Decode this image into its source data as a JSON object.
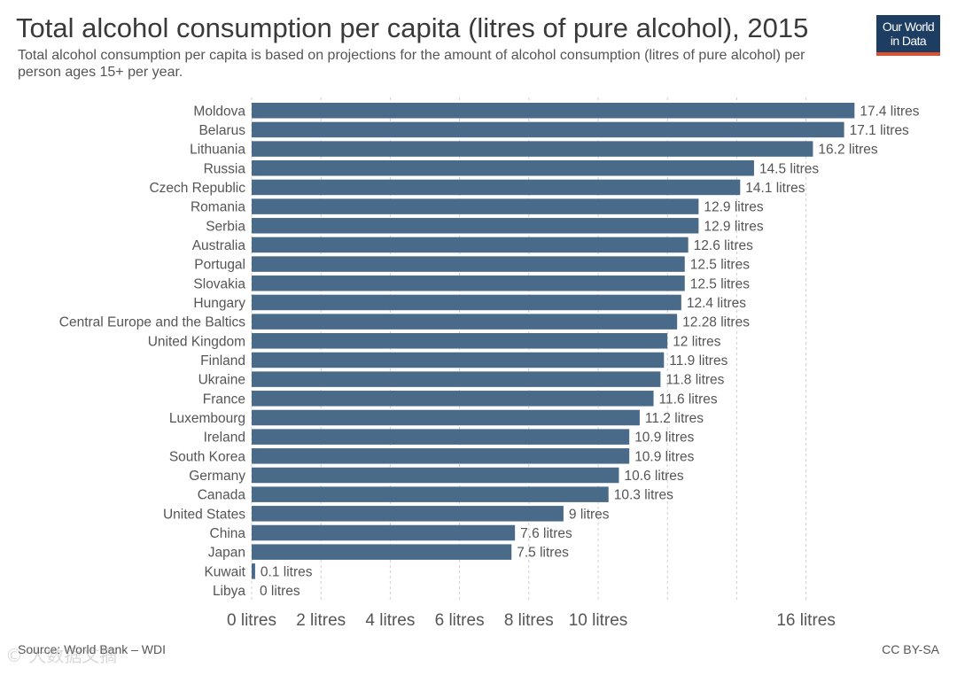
{
  "header": {
    "title": "Total alcohol consumption per capita (litres of pure alcohol), 2015",
    "subtitle": "Total alcohol consumption per capita is based on projections for the amount of alcohol consumption (litres of pure alcohol) per person ages 15+ per year.",
    "logo_line1": "Our World",
    "logo_line2": "in Data"
  },
  "footer": {
    "source": "Source: World Bank – WDI",
    "license": "CC BY-SA",
    "watermark": "© 大数据文摘"
  },
  "colors": {
    "bar": "#4a6a8a",
    "grid": "#d0d0d0",
    "label": "#555555",
    "logo_bg": "#1d3d63",
    "logo_accent": "#e0502f"
  },
  "chart_data": {
    "type": "bar",
    "orientation": "horizontal",
    "categories": [
      "Moldova",
      "Belarus",
      "Lithuania",
      "Russia",
      "Czech Republic",
      "Romania",
      "Serbia",
      "Australia",
      "Portugal",
      "Slovakia",
      "Hungary",
      "Central Europe and the Baltics",
      "United Kingdom",
      "Finland",
      "Ukraine",
      "France",
      "Luxembourg",
      "Ireland",
      "South Korea",
      "Germany",
      "Canada",
      "United States",
      "China",
      "Japan",
      "Kuwait",
      "Libya"
    ],
    "values": [
      17.4,
      17.1,
      16.2,
      14.5,
      14.1,
      12.9,
      12.9,
      12.6,
      12.5,
      12.5,
      12.4,
      12.28,
      12,
      11.9,
      11.8,
      11.6,
      11.2,
      10.9,
      10.9,
      10.6,
      10.3,
      9,
      7.6,
      7.5,
      0.1,
      0
    ],
    "data_labels": [
      "17.4 litres",
      "17.1 litres",
      "16.2 litres",
      "14.5 litres",
      "14.1 litres",
      "12.9 litres",
      "12.9 litres",
      "12.6 litres",
      "12.5 litres",
      "12.5 litres",
      "12.4 litres",
      "12.28 litres",
      "12 litres",
      "11.9 litres",
      "11.8 litres",
      "11.6 litres",
      "11.2 litres",
      "10.9 litres",
      "10.9 litres",
      "10.6 litres",
      "10.3 litres",
      "9 litres",
      "7.6 litres",
      "7.5 litres",
      "0.1 litres",
      "0 litres"
    ],
    "x_ticks": [
      0,
      2,
      4,
      6,
      8,
      10,
      16
    ],
    "x_tick_labels": [
      "0 litres",
      "2 litres",
      "4 litres",
      "6 litres",
      "8 litres",
      "10 litres",
      "16 litres"
    ],
    "grid_lines": [
      0,
      2,
      4,
      6,
      8,
      10,
      12,
      14,
      16
    ],
    "xlim": [
      0,
      17.4
    ],
    "grid": true
  }
}
